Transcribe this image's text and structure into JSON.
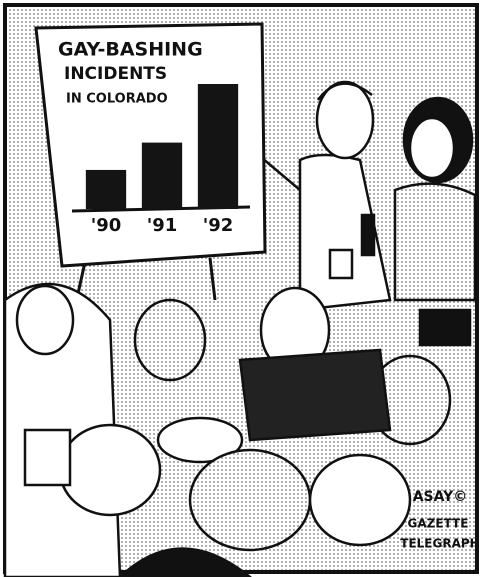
{
  "chart_data": {
    "type": "bar",
    "title": [
      "GAY-BASHING",
      "INCIDENTS"
    ],
    "subtitle": "IN COLORADO",
    "categories": [
      "'90",
      "'91",
      "'92"
    ],
    "values": [
      1,
      1.7,
      3.2
    ],
    "color": "#141414"
  },
  "credit": {
    "artist": "ASAY©",
    "publisher": [
      "GAZETTE",
      "TELEGRAPH"
    ]
  }
}
